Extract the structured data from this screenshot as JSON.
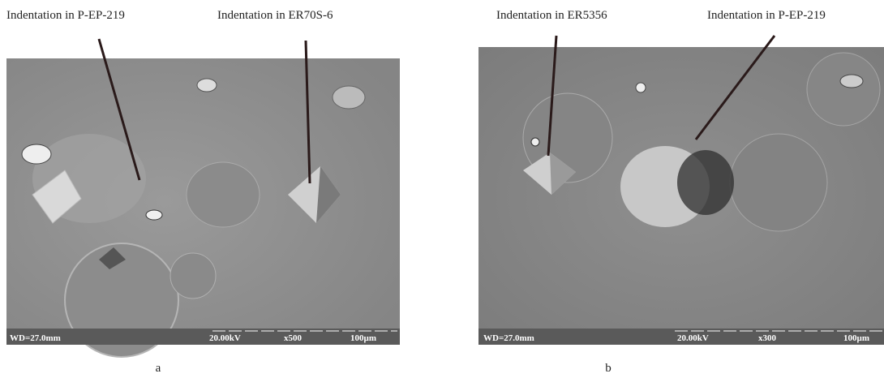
{
  "panels": [
    {
      "caption": "a",
      "annotations": [
        "Indentation in P-EP-219",
        "Indentation in ER70S-6"
      ],
      "info": {
        "working_distance": "WD=27.0mm",
        "voltage": "20.00kV",
        "magnification": "x500",
        "scale": "100µm"
      }
    },
    {
      "caption": "b",
      "annotations": [
        "Indentation in ER5356",
        "Indentation in P-EP-219"
      ],
      "info": {
        "working_distance": "WD=27.0mm",
        "voltage": "20.00kV",
        "magnification": "x300",
        "scale": "100µm"
      }
    }
  ]
}
